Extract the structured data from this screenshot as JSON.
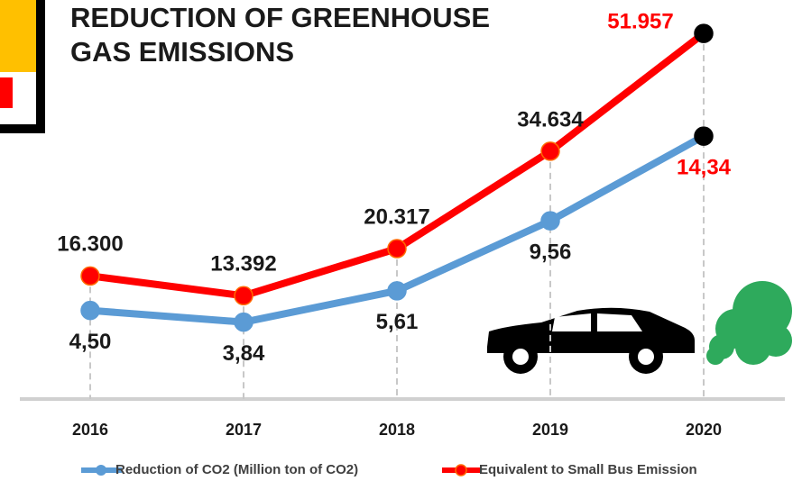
{
  "chart_data": {
    "type": "line",
    "title": [
      "REDUCTION OF GREENHOUSE",
      "GAS EMISSIONS"
    ],
    "categories": [
      "2016",
      "2017",
      "2018",
      "2019",
      "2020"
    ],
    "series": [
      {
        "name": "Reduction of CO2 (Million ton of CO2)",
        "color": "#5b9bd5",
        "values": [
          4.5,
          3.84,
          5.61,
          9.56,
          14.34
        ],
        "value_labels": [
          "4,50",
          "3,84",
          "5,61",
          "9,56",
          "14,34"
        ]
      },
      {
        "name": "Equivalent to Small Bus Emission",
        "color": "#ff0000",
        "axis": "y2",
        "values": [
          16300,
          13392,
          20317,
          34634,
          51957
        ],
        "value_labels": [
          "16.300",
          "13.392",
          "20.317",
          "34.634",
          "51.957"
        ]
      }
    ],
    "ylim": [
      -0.5,
      20.5
    ],
    "y2lim": [
      -1800,
      52900
    ]
  }
}
